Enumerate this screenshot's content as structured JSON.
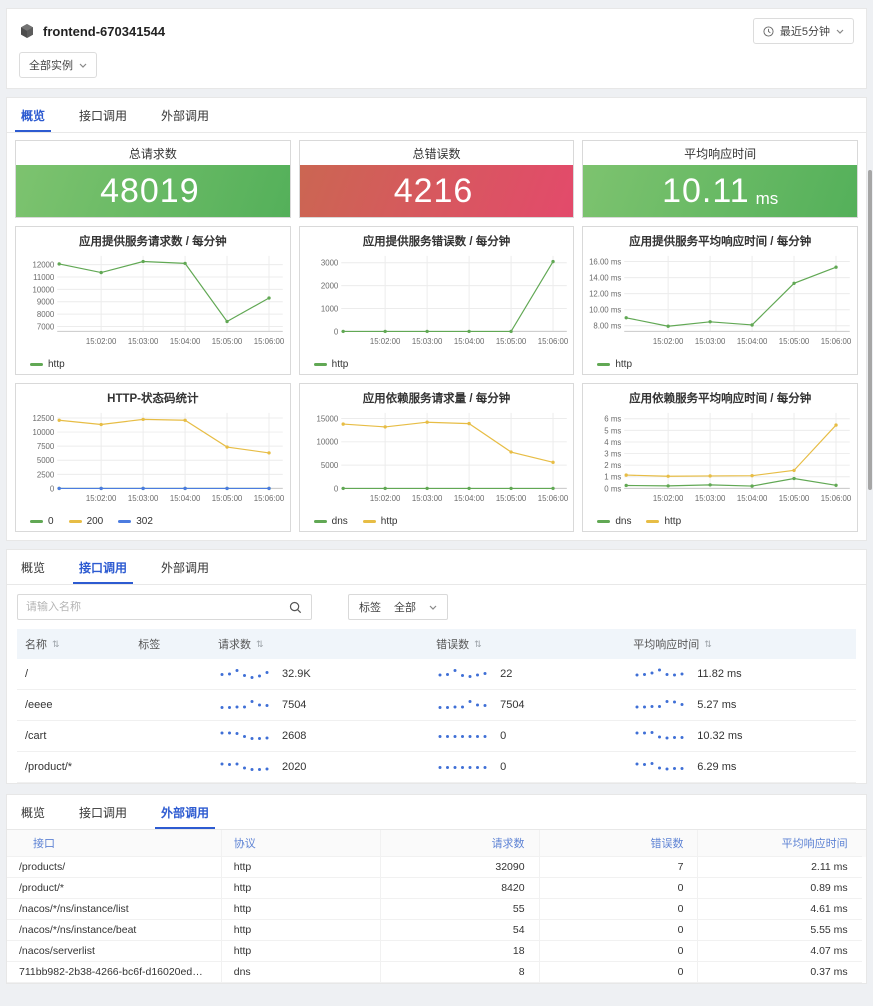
{
  "header": {
    "app_title": "frontend-670341544",
    "time_range_label": "最近5分钟",
    "instance_filter_label": "全部实例"
  },
  "tabs": [
    "概览",
    "接口调用",
    "外部调用"
  ],
  "stats": [
    {
      "title": "总请求数",
      "value": "48019",
      "unit": "",
      "theme": "green"
    },
    {
      "title": "总错误数",
      "value": "4216",
      "unit": "",
      "theme": "red"
    },
    {
      "title": "平均响应时间",
      "value": "10.11",
      "unit": "ms",
      "theme": "green"
    }
  ],
  "colors": {
    "line_green": "#61a854",
    "line_yellow": "#e7bd45",
    "line_blue": "#4c7ce0",
    "tab_active": "#2d5bd1",
    "table_header_link": "#5e83d4",
    "stat_green": [
      "#7dc36f",
      "#54b05a"
    ],
    "stat_red": [
      "#cb6652",
      "#e34a6b"
    ],
    "spark_dot": "#3f6fd6"
  },
  "chart_data": [
    {
      "type": "line",
      "title": "应用提供服务请求数 / 每分钟",
      "x": [
        "15:01:00",
        "15:02:00",
        "15:03:00",
        "15:04:00",
        "15:05:00",
        "15:06:00"
      ],
      "series": [
        {
          "name": "http",
          "color": "#61a854",
          "values": [
            12050,
            11350,
            12250,
            12100,
            7400,
            9300
          ]
        }
      ],
      "yticks": [
        7000,
        8000,
        9000,
        10000,
        11000,
        12000
      ],
      "ytick_labels": [
        "7000",
        "8000",
        "9000",
        "10000",
        "11000",
        "12000"
      ],
      "ymin": 6600,
      "ymax": 12700
    },
    {
      "type": "line",
      "title": "应用提供服务错误数 / 每分钟",
      "x": [
        "15:01:00",
        "15:02:00",
        "15:03:00",
        "15:04:00",
        "15:05:00",
        "15:06:00"
      ],
      "series": [
        {
          "name": "http",
          "color": "#61a854",
          "values": [
            0,
            0,
            0,
            0,
            0,
            3050
          ]
        }
      ],
      "yticks": [
        0,
        1000,
        2000,
        3000
      ],
      "ytick_labels": [
        "0",
        "1000",
        "2000",
        "3000"
      ],
      "ymin": 0,
      "ymax": 3300
    },
    {
      "type": "line",
      "title": "应用提供服务平均响应时间 / 每分钟",
      "x": [
        "15:01:00",
        "15:02:00",
        "15:03:00",
        "15:04:00",
        "15:05:00",
        "15:06:00"
      ],
      "series": [
        {
          "name": "http",
          "color": "#61a854",
          "values": [
            9.0,
            7.95,
            8.5,
            8.1,
            13.3,
            15.3
          ]
        }
      ],
      "yticks": [
        8,
        10,
        12,
        14,
        16
      ],
      "ytick_labels": [
        "8.00 ms",
        "10.00 ms",
        "12.00 ms",
        "14.00 ms",
        "16.00 ms"
      ],
      "ymin": 7.3,
      "ymax": 16.7
    },
    {
      "type": "line",
      "title": "HTTP-状态码统计",
      "x": [
        "15:01:00",
        "15:02:00",
        "15:03:00",
        "15:04:00",
        "15:05:00",
        "15:06:00"
      ],
      "series": [
        {
          "name": "0",
          "color": "#61a854",
          "values": [
            0,
            0,
            0,
            0,
            0,
            0
          ]
        },
        {
          "name": "200",
          "color": "#e7bd45",
          "values": [
            12100,
            11350,
            12250,
            12100,
            7350,
            6300
          ]
        },
        {
          "name": "302",
          "color": "#4c7ce0",
          "values": [
            0,
            0,
            0,
            0,
            0,
            0
          ]
        }
      ],
      "yticks": [
        0,
        2500,
        5000,
        7500,
        10000,
        12500
      ],
      "ytick_labels": [
        "0",
        "2500",
        "5000",
        "7500",
        "10000",
        "12500"
      ],
      "ymin": 0,
      "ymax": 13400
    },
    {
      "type": "line",
      "title": "应用依赖服务请求量 / 每分钟",
      "x": [
        "15:01:00",
        "15:02:00",
        "15:03:00",
        "15:04:00",
        "15:05:00",
        "15:06:00"
      ],
      "series": [
        {
          "name": "dns",
          "color": "#61a854",
          "values": [
            0,
            0,
            0,
            0,
            0,
            0
          ]
        },
        {
          "name": "http",
          "color": "#e7bd45",
          "values": [
            13800,
            13200,
            14200,
            13900,
            7800,
            5600
          ]
        }
      ],
      "yticks": [
        0,
        5000,
        10000,
        15000
      ],
      "ytick_labels": [
        "0",
        "5000",
        "10000",
        "15000"
      ],
      "ymin": 0,
      "ymax": 16200
    },
    {
      "type": "line",
      "title": "应用依赖服务平均响应时间 / 每分钟",
      "x": [
        "15:01:00",
        "15:02:00",
        "15:03:00",
        "15:04:00",
        "15:05:00",
        "15:06:00"
      ],
      "series": [
        {
          "name": "dns",
          "color": "#61a854",
          "values": [
            0.25,
            0.22,
            0.3,
            0.2,
            0.85,
            0.27
          ]
        },
        {
          "name": "http",
          "color": "#e7bd45",
          "values": [
            1.15,
            1.05,
            1.07,
            1.1,
            1.55,
            5.45
          ]
        }
      ],
      "yticks": [
        0,
        1,
        2,
        3,
        4,
        5,
        6
      ],
      "ytick_labels": [
        "0 ms",
        "1 ms",
        "2 ms",
        "3 ms",
        "4 ms",
        "5 ms",
        "6 ms"
      ],
      "ymin": 0,
      "ymax": 6.5
    }
  ],
  "interface_section": {
    "search_placeholder": "请输入名称",
    "tag_label": "标签",
    "tag_value": "全部",
    "columns": [
      {
        "label": "名称",
        "sortable": true
      },
      {
        "label": "标签",
        "sortable": false
      },
      {
        "label": "请求数",
        "sortable": true
      },
      {
        "label": "错误数",
        "sortable": true
      },
      {
        "label": "平均响应时间",
        "sortable": true
      }
    ],
    "rows": [
      {
        "name": "/",
        "tag": "",
        "requests": "32.9K",
        "requests_spark": [
          0.5,
          0.55,
          0.9,
          0.4,
          0.2,
          0.35,
          0.7
        ],
        "errors": "22",
        "errors_spark": [
          0.45,
          0.5,
          0.9,
          0.4,
          0.3,
          0.45,
          0.6
        ],
        "avg_rt": "11.82 ms",
        "avg_rt_spark": [
          0.45,
          0.5,
          0.65,
          0.95,
          0.5,
          0.45,
          0.55
        ]
      },
      {
        "name": "/eeee",
        "tag": "",
        "requests": "7504",
        "requests_spark": [
          0.3,
          0.3,
          0.35,
          0.35,
          0.9,
          0.55,
          0.5
        ],
        "errors": "7504",
        "errors_spark": [
          0.3,
          0.3,
          0.35,
          0.35,
          0.9,
          0.55,
          0.5
        ],
        "avg_rt": "5.27 ms",
        "avg_rt_spark": [
          0.35,
          0.35,
          0.4,
          0.4,
          0.9,
          0.85,
          0.6
        ]
      },
      {
        "name": "/cart",
        "tag": "",
        "requests": "2608",
        "requests_spark": [
          0.85,
          0.85,
          0.8,
          0.5,
          0.3,
          0.3,
          0.35
        ],
        "errors": "0",
        "errors_spark": [
          0.5,
          0.5,
          0.5,
          0.5,
          0.5,
          0.5,
          0.5
        ],
        "avg_rt": "10.32 ms",
        "avg_rt_spark": [
          0.85,
          0.85,
          0.9,
          0.45,
          0.35,
          0.4,
          0.4
        ]
      },
      {
        "name": "/product/*",
        "tag": "",
        "requests": "2020",
        "requests_spark": [
          0.85,
          0.8,
          0.85,
          0.45,
          0.3,
          0.3,
          0.35
        ],
        "errors": "0",
        "errors_spark": [
          0.5,
          0.5,
          0.5,
          0.5,
          0.5,
          0.5,
          0.5
        ],
        "avg_rt": "6.29 ms",
        "avg_rt_spark": [
          0.85,
          0.8,
          0.9,
          0.45,
          0.35,
          0.4,
          0.4
        ]
      }
    ]
  },
  "external_section": {
    "columns": [
      "接口",
      "协议",
      "请求数",
      "错误数",
      "平均响应时间"
    ],
    "rows": [
      {
        "interface": "/products/",
        "protocol": "http",
        "requests": "32090",
        "errors": "7",
        "avg_rt": "2.11 ms"
      },
      {
        "interface": "/product/*",
        "protocol": "http",
        "requests": "8420",
        "errors": "0",
        "avg_rt": "0.89 ms"
      },
      {
        "interface": "/nacos/*/ns/instance/list",
        "protocol": "http",
        "requests": "55",
        "errors": "0",
        "avg_rt": "4.61 ms"
      },
      {
        "interface": "/nacos/*/ns/instance/beat",
        "protocol": "http",
        "requests": "54",
        "errors": "0",
        "avg_rt": "5.55 ms"
      },
      {
        "interface": "/nacos/serverlist",
        "protocol": "http",
        "requests": "18",
        "errors": "0",
        "avg_rt": "4.07 ms"
      },
      {
        "interface": "711bb982-2b38-4266-bc6f-d16020ed20c5-0.addr-bj-internal...",
        "protocol": "dns",
        "requests": "8",
        "errors": "0",
        "avg_rt": "0.37 ms"
      }
    ]
  }
}
